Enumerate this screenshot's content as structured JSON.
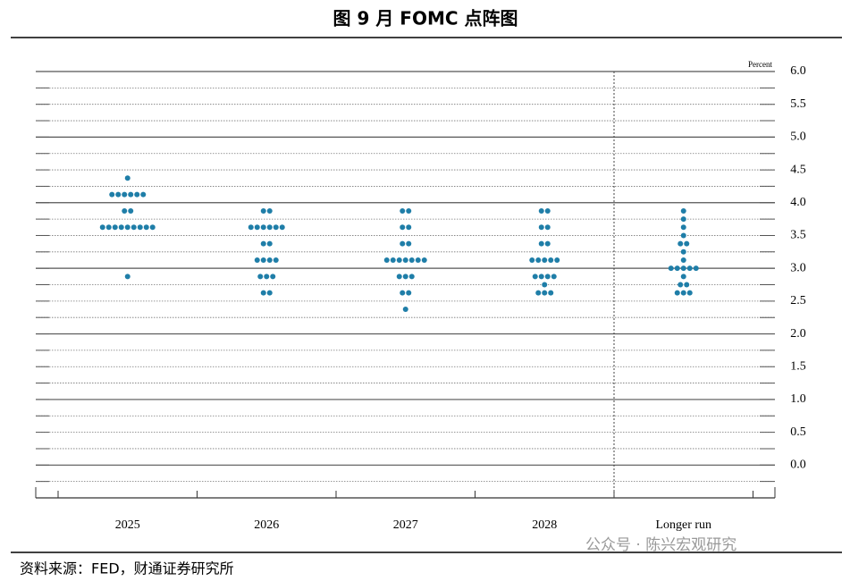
{
  "chart_data": {
    "type": "dot",
    "title": "图 9 月 FOMC 点阵图",
    "unit_label": "Percent",
    "categories": [
      "2025",
      "2026",
      "2027",
      "2028",
      "Longer run"
    ],
    "dots": [
      [
        4.375,
        4.125,
        4.125,
        4.125,
        4.125,
        4.125,
        4.125,
        3.875,
        3.875,
        3.625,
        3.625,
        3.625,
        3.625,
        3.625,
        3.625,
        3.625,
        3.625,
        3.625,
        2.875
      ],
      [
        3.875,
        3.875,
        3.625,
        3.625,
        3.625,
        3.625,
        3.625,
        3.625,
        3.375,
        3.375,
        3.125,
        3.125,
        3.125,
        3.125,
        2.875,
        2.875,
        2.875,
        2.625,
        2.625
      ],
      [
        3.875,
        3.875,
        3.625,
        3.625,
        3.375,
        3.375,
        3.125,
        3.125,
        3.125,
        3.125,
        3.125,
        3.125,
        3.125,
        2.875,
        2.875,
        2.875,
        2.625,
        2.625,
        2.375
      ],
      [
        3.875,
        3.875,
        3.625,
        3.625,
        3.375,
        3.375,
        3.125,
        3.125,
        3.125,
        3.125,
        3.125,
        2.875,
        2.875,
        2.875,
        2.875,
        2.75,
        2.625,
        2.625,
        2.625
      ],
      [
        3.875,
        3.75,
        3.625,
        3.5,
        3.375,
        3.375,
        3.25,
        3.125,
        3.0,
        3.0,
        3.0,
        3.0,
        3.0,
        2.875,
        2.75,
        2.75,
        2.625,
        2.625,
        2.625
      ]
    ],
    "color": "#1f7ea8",
    "ylim": [
      -0.5,
      6.0
    ],
    "yticks": [
      {
        "value": 0,
        "label": "0.0"
      },
      0.5,
      {
        "value": 1,
        "label": "1.0"
      },
      1.5,
      {
        "value": 2,
        "label": "2.0"
      },
      2.5,
      {
        "value": 3,
        "label": "3.0"
      },
      3.5,
      {
        "value": 4,
        "label": "4.0"
      },
      4.5,
      {
        "value": 5,
        "label": "5.0"
      },
      5.5,
      {
        "value": 6,
        "label": "6.0"
      }
    ],
    "grid": true,
    "source": "资料来源：FED，财通证券研究所",
    "watermark": "公众号 · 陈兴宏观研究"
  }
}
